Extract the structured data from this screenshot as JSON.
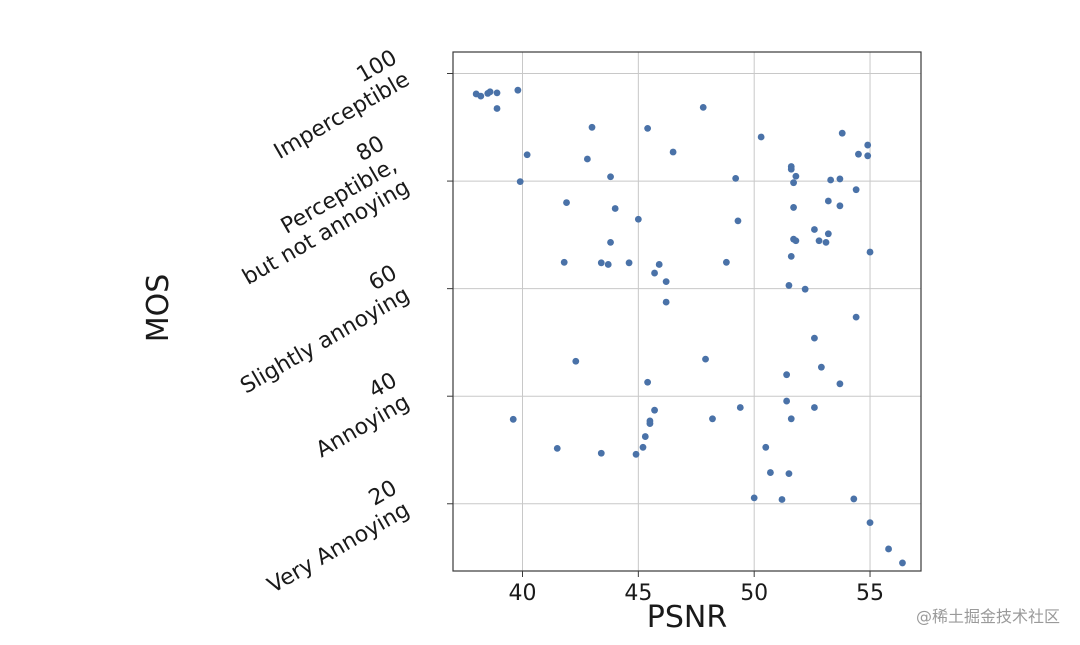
{
  "watermark": "@稀土掘金技术社区",
  "chart_data": {
    "type": "scatter",
    "xlabel": "PSNR",
    "ylabel": "MOS",
    "xlim": [
      37,
      57.2
    ],
    "ylim": [
      7.5,
      104
    ],
    "x_ticks": [
      40,
      45,
      50,
      55
    ],
    "y_ticks": [
      {
        "value": 20,
        "lines": [
          "20",
          "Very Annoying"
        ]
      },
      {
        "value": 40,
        "lines": [
          "40",
          "Annoying"
        ]
      },
      {
        "value": 60,
        "lines": [
          "60",
          "Slightly annoying"
        ]
      },
      {
        "value": 80,
        "lines": [
          "80",
          "Perceptible,",
          "but not annoying"
        ]
      },
      {
        "value": 100,
        "lines": [
          "100",
          "Imperceptible"
        ]
      }
    ],
    "grid": true,
    "marker_color": "#4a72a8",
    "points": [
      [
        38.0,
        96.2
      ],
      [
        38.2,
        95.8
      ],
      [
        38.5,
        96.3
      ],
      [
        38.6,
        96.6
      ],
      [
        38.9,
        96.4
      ],
      [
        39.8,
        96.9
      ],
      [
        38.9,
        93.5
      ],
      [
        40.2,
        84.9
      ],
      [
        39.9,
        79.9
      ],
      [
        41.9,
        76.0
      ],
      [
        41.8,
        64.9
      ],
      [
        42.3,
        46.5
      ],
      [
        39.6,
        35.7
      ],
      [
        41.5,
        30.3
      ],
      [
        43.0,
        90.0
      ],
      [
        42.8,
        84.1
      ],
      [
        43.8,
        80.8
      ],
      [
        44.0,
        74.9
      ],
      [
        43.8,
        68.6
      ],
      [
        43.4,
        64.8
      ],
      [
        43.7,
        64.5
      ],
      [
        44.6,
        64.8
      ],
      [
        43.4,
        29.4
      ],
      [
        45.0,
        72.9
      ],
      [
        45.4,
        89.8
      ],
      [
        45.7,
        62.9
      ],
      [
        45.9,
        64.5
      ],
      [
        46.2,
        61.3
      ],
      [
        46.2,
        57.5
      ],
      [
        45.4,
        42.6
      ],
      [
        45.7,
        37.4
      ],
      [
        45.5,
        35.4
      ],
      [
        45.5,
        34.9
      ],
      [
        45.3,
        32.5
      ],
      [
        45.2,
        30.5
      ],
      [
        44.9,
        29.2
      ],
      [
        46.5,
        85.4
      ],
      [
        47.8,
        93.7
      ],
      [
        47.9,
        46.9
      ],
      [
        48.2,
        35.8
      ],
      [
        48.8,
        64.9
      ],
      [
        49.2,
        80.5
      ],
      [
        49.3,
        72.6
      ],
      [
        49.4,
        37.9
      ],
      [
        50.3,
        88.2
      ],
      [
        50.5,
        30.5
      ],
      [
        50.7,
        25.8
      ],
      [
        50.0,
        21.1
      ],
      [
        51.6,
        82.7
      ],
      [
        51.6,
        82.2
      ],
      [
        51.8,
        80.9
      ],
      [
        51.7,
        79.7
      ],
      [
        51.7,
        75.1
      ],
      [
        51.7,
        69.2
      ],
      [
        51.8,
        68.9
      ],
      [
        51.6,
        66.0
      ],
      [
        51.5,
        60.6
      ],
      [
        51.4,
        44.0
      ],
      [
        51.4,
        39.1
      ],
      [
        51.6,
        35.8
      ],
      [
        51.5,
        25.6
      ],
      [
        51.2,
        20.8
      ],
      [
        52.2,
        59.9
      ],
      [
        52.6,
        71.0
      ],
      [
        52.8,
        68.9
      ],
      [
        52.6,
        50.8
      ],
      [
        52.9,
        45.4
      ],
      [
        52.6,
        37.9
      ],
      [
        53.1,
        68.6
      ],
      [
        53.2,
        70.2
      ],
      [
        53.2,
        76.3
      ],
      [
        53.3,
        80.2
      ],
      [
        53.7,
        80.4
      ],
      [
        53.7,
        75.4
      ],
      [
        53.8,
        88.9
      ],
      [
        53.7,
        42.3
      ],
      [
        54.3,
        20.9
      ],
      [
        54.5,
        85.0
      ],
      [
        54.4,
        78.4
      ],
      [
        54.4,
        54.7
      ],
      [
        54.9,
        86.7
      ],
      [
        54.9,
        84.7
      ],
      [
        55.0,
        66.8
      ],
      [
        55.0,
        16.5
      ],
      [
        55.8,
        11.6
      ],
      [
        56.4,
        9.0
      ]
    ]
  }
}
